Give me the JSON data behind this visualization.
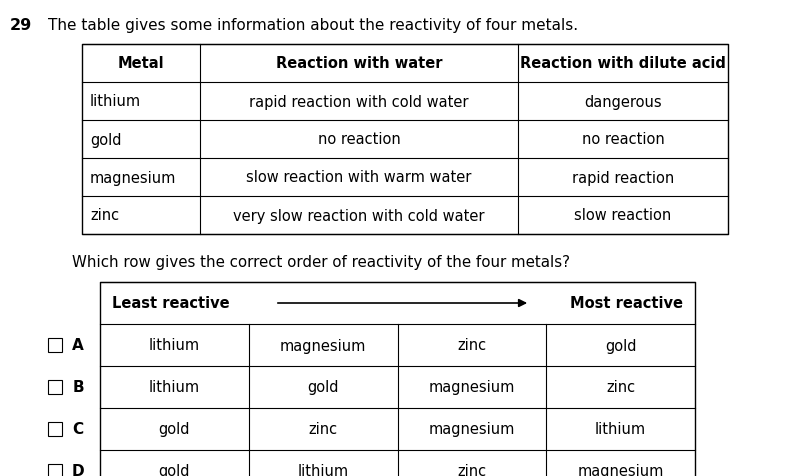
{
  "question_number": "29",
  "question_text": "The table gives some information about the reactivity of four metals.",
  "sub_question": "Which row gives the correct order of reactivity of the four metals?",
  "top_table": {
    "headers": [
      "Metal",
      "Reaction with water",
      "Reaction with dilute acid"
    ],
    "rows": [
      [
        "lithium",
        "rapid reaction with cold water",
        "dangerous"
      ],
      [
        "gold",
        "no reaction",
        "no reaction"
      ],
      [
        "magnesium",
        "slow reaction with warm water",
        "rapid reaction"
      ],
      [
        "zinc",
        "very slow reaction with cold water",
        "slow reaction"
      ]
    ]
  },
  "bottom_table": {
    "header_left": "Least reactive",
    "header_right": "Most reactive",
    "rows": [
      [
        "A",
        "lithium",
        "magnesium",
        "zinc",
        "gold"
      ],
      [
        "B",
        "lithium",
        "gold",
        "magnesium",
        "zinc"
      ],
      [
        "C",
        "gold",
        "zinc",
        "magnesium",
        "lithium"
      ],
      [
        "D",
        "gold",
        "lithium",
        "zinc",
        "magnesium"
      ]
    ]
  },
  "background_color": "#ffffff",
  "text_color": "#000000",
  "border_color": "#000000"
}
